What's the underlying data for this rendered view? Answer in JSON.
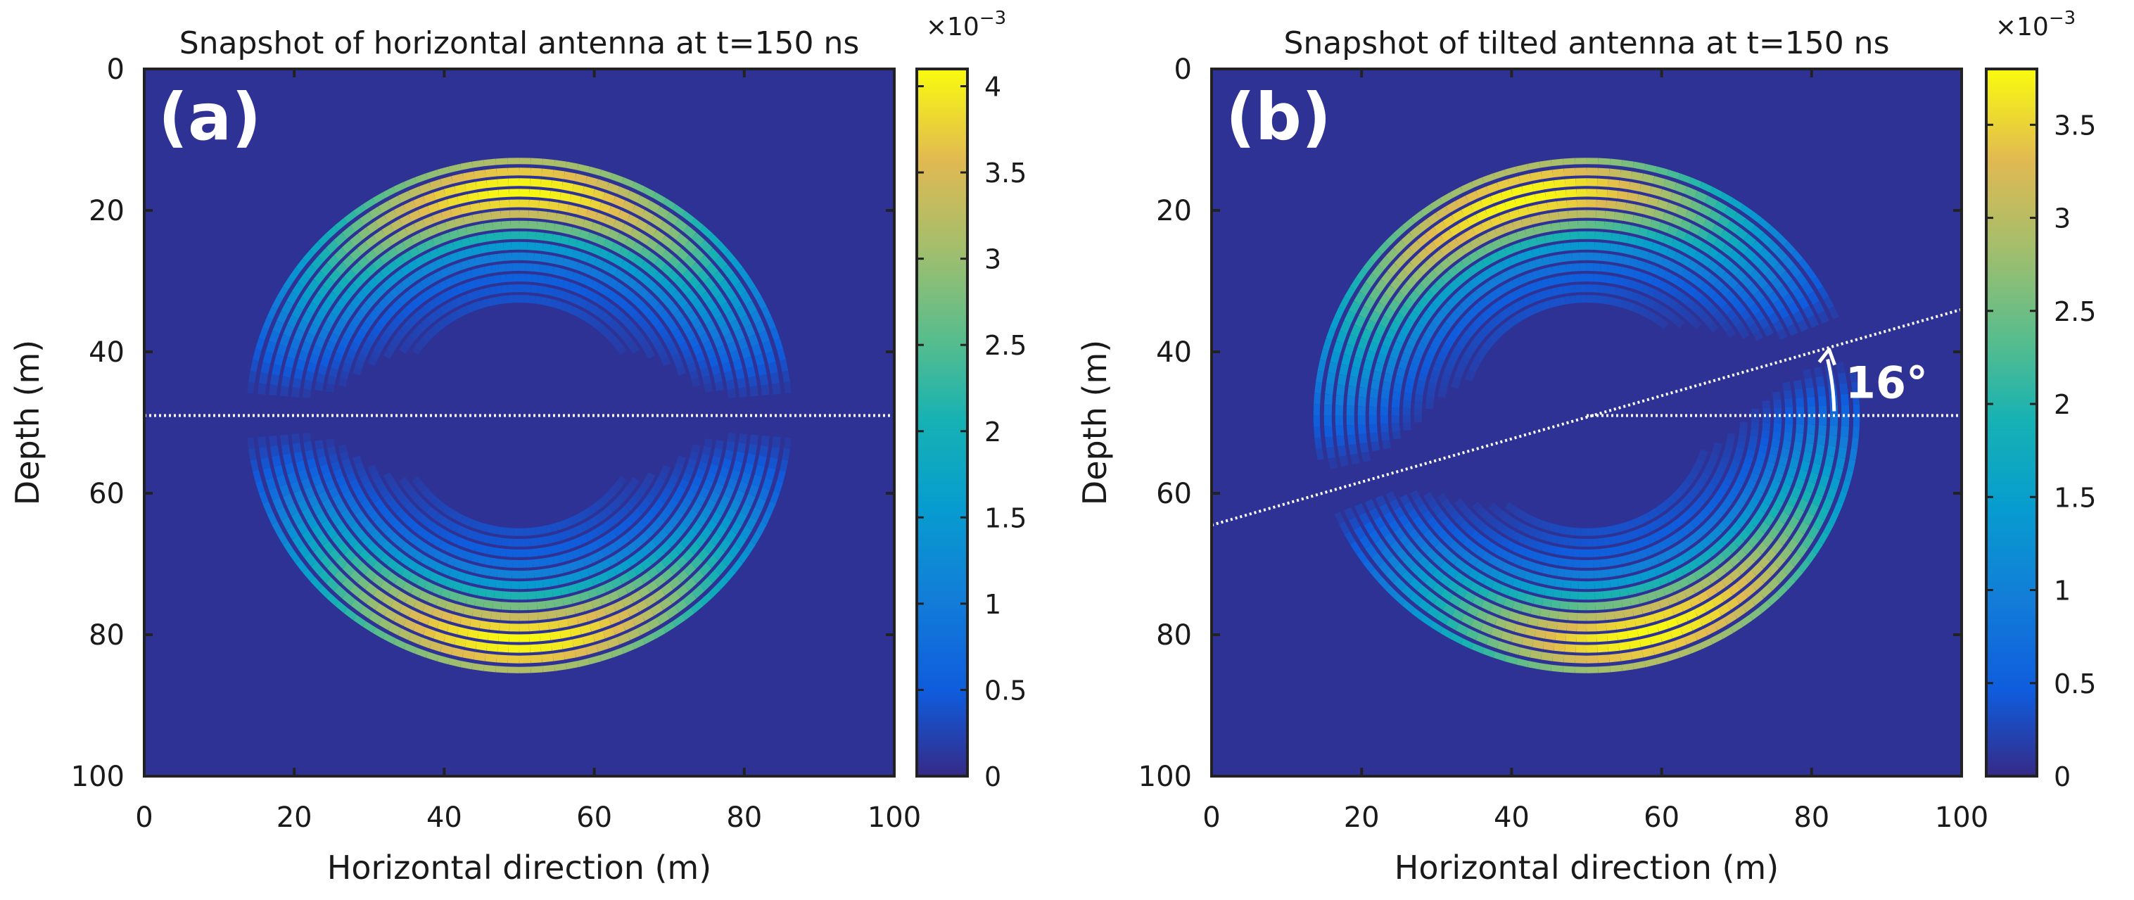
{
  "chart_data": [
    {
      "type": "heatmap",
      "title": "Snapshot of horizontal antenna at t=150 ns",
      "panel_label": "(a)",
      "xlabel": "Horizontal direction (m)",
      "ylabel": "Depth (m)",
      "xlim": [
        0,
        100
      ],
      "ylim": [
        0,
        100
      ],
      "xticks": [
        "0",
        "20",
        "40",
        "60",
        "80",
        "100"
      ],
      "yticks": [
        "0",
        "20",
        "40",
        "60",
        "80",
        "100"
      ],
      "y_reversed": true,
      "source_center": [
        50,
        49
      ],
      "wavefront_radii_m": [
        36,
        34.5,
        33,
        31.5,
        30,
        28.5,
        27,
        25.5,
        24,
        22.5,
        21,
        19.5,
        18,
        16.5
      ],
      "peak_amplitude": 0.0041,
      "antenna_angle_deg": 0,
      "antenna_line": {
        "x": [
          0,
          100
        ],
        "y": [
          49,
          49
        ]
      },
      "colorbar": {
        "exponent_label": "×10",
        "exponent": "−3",
        "min": 0,
        "max": 4.1,
        "ticks": [
          "0",
          "0.5",
          "1",
          "1.5",
          "2",
          "2.5",
          "3",
          "3.5",
          "4"
        ]
      }
    },
    {
      "type": "heatmap",
      "title": "Snapshot of tilted antenna at t=150 ns",
      "panel_label": "(b)",
      "xlabel": "Horizontal direction (m)",
      "ylabel": "Depth (m)",
      "xlim": [
        0,
        100
      ],
      "ylim": [
        0,
        100
      ],
      "xticks": [
        "0",
        "20",
        "40",
        "60",
        "80",
        "100"
      ],
      "yticks": [
        "0",
        "20",
        "40",
        "60",
        "80",
        "100"
      ],
      "y_reversed": true,
      "source_center": [
        50,
        49
      ],
      "wavefront_radii_m": [
        36,
        34.5,
        33,
        31.5,
        30,
        28.5,
        27,
        25.5,
        24,
        22.5,
        21,
        19.5,
        18,
        16.5
      ],
      "peak_amplitude": 0.0038,
      "antenna_angle_deg": 16,
      "angle_label": "16°",
      "antenna_line": {
        "x": [
          0,
          100
        ],
        "y": [
          64.5,
          34
        ]
      },
      "reference_line": {
        "x": [
          50,
          100
        ],
        "y": [
          49,
          49
        ]
      },
      "colorbar": {
        "exponent_label": "×10",
        "exponent": "−3",
        "min": 0,
        "max": 3.8,
        "ticks": [
          "0",
          "0.5",
          "1",
          "1.5",
          "2",
          "2.5",
          "3",
          "3.5"
        ]
      }
    }
  ]
}
